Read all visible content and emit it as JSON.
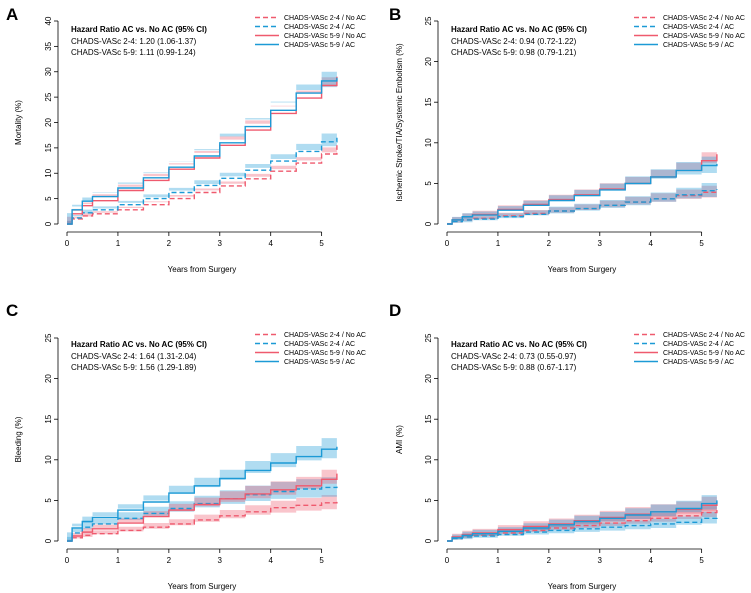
{
  "chart_data": [
    {
      "type": "line",
      "panel": "A",
      "xlabel": "Years from Surgery",
      "ylabel": "Mortality (%)",
      "xlim": [
        0,
        5.4
      ],
      "ylim": [
        0,
        40
      ],
      "xticks": [
        "0",
        "1",
        "2",
        "3",
        "4",
        "5"
      ],
      "yticks": [
        "0",
        "5",
        "10",
        "15",
        "20",
        "25",
        "30",
        "35",
        "40"
      ],
      "hr_title": "Hazard Ratio AC vs. No AC (95% CI)",
      "hr_lines": [
        "CHADS-VASc 2-4: 1.20 (1.06-1.37)",
        "CHADS-VASc 5-9: 1.11 (0.99-1.24)"
      ],
      "legend": [
        "CHADS-VASc 2-4 / No AC",
        "CHADS-VASc 2-4 / AC",
        "CHADS-VASc 5-9 / No AC",
        "CHADS-VASc 5-9 / AC"
      ],
      "series": [
        {
          "name": "CHADS-VASc 2-4 / No AC",
          "color": "#ef5a6e",
          "dashed": true,
          "band": 1.0,
          "x": [
            0,
            0.1,
            0.3,
            0.5,
            1,
            1.5,
            2,
            2.5,
            3,
            3.5,
            4,
            4.5,
            5,
            5.3
          ],
          "y": [
            0,
            1.0,
            1.6,
            2.0,
            2.8,
            3.8,
            5.0,
            6.2,
            7.5,
            8.9,
            10.4,
            12.0,
            13.8,
            15.5
          ]
        },
        {
          "name": "CHADS-VASc 2-4 / AC",
          "color": "#1c9ad6",
          "dashed": true,
          "band": 1.2,
          "x": [
            0,
            0.1,
            0.3,
            0.5,
            1,
            1.5,
            2,
            2.5,
            3,
            3.5,
            4,
            4.5,
            5,
            5.3
          ],
          "y": [
            0,
            1.2,
            2.2,
            2.8,
            3.8,
            5.0,
            6.2,
            7.6,
            9.0,
            10.6,
            12.4,
            14.3,
            16.2,
            17.0
          ]
        },
        {
          "name": "CHADS-VASc 5-9 / No AC",
          "color": "#ef5a6e",
          "dashed": false,
          "band": 1.2,
          "x": [
            0,
            0.1,
            0.3,
            0.5,
            1,
            1.5,
            2,
            2.5,
            3,
            3.5,
            4,
            4.5,
            5,
            5.3
          ],
          "y": [
            0,
            2.0,
            3.6,
            4.6,
            6.6,
            8.6,
            10.8,
            13.0,
            15.5,
            18.5,
            21.8,
            24.8,
            27.3,
            29.0
          ]
        },
        {
          "name": "CHADS-VASc 5-9 / AC",
          "color": "#1c9ad6",
          "dashed": false,
          "band": 1.3,
          "x": [
            0,
            0.1,
            0.3,
            0.5,
            1,
            1.5,
            2,
            2.5,
            3,
            3.5,
            4,
            4.5,
            5,
            5.3
          ],
          "y": [
            0,
            2.8,
            4.5,
            5.4,
            7.1,
            9.1,
            11.2,
            13.4,
            16.0,
            19.2,
            22.4,
            25.8,
            28.2,
            28.8
          ]
        }
      ]
    },
    {
      "type": "line",
      "panel": "B",
      "xlabel": "Years from Surgery",
      "ylabel": "Ischemic Stroke/TIA/Systemic Embolism (%)",
      "xlim": [
        0,
        5.4
      ],
      "ylim": [
        0,
        25
      ],
      "xticks": [
        "0",
        "1",
        "2",
        "3",
        "4",
        "5"
      ],
      "yticks": [
        "0",
        "5",
        "10",
        "15",
        "20",
        "25"
      ],
      "hr_title": "Hazard Ratio AC vs. No AC (95% CI)",
      "hr_lines": [
        "CHADS-VASc 2-4: 0.94 (0.72-1.22)",
        "CHADS-VASc 5-9: 0.98 (0.79-1.21)"
      ],
      "legend": [
        "CHADS-VASc 2-4 / No AC",
        "CHADS-VASc 2-4 / AC",
        "CHADS-VASc 5-9 / No AC",
        "CHADS-VASc 5-9 / AC"
      ],
      "series": [
        {
          "name": "CHADS-VASc 2-4 / No AC",
          "color": "#ef5a6e",
          "dashed": true,
          "band": 0.6,
          "x": [
            0,
            0.1,
            0.3,
            0.5,
            1,
            1.5,
            2,
            2.5,
            3,
            3.5,
            4,
            4.5,
            5,
            5.3
          ],
          "y": [
            0,
            0.3,
            0.5,
            0.7,
            1.0,
            1.3,
            1.6,
            1.9,
            2.3,
            2.7,
            3.1,
            3.5,
            3.9,
            4.1
          ]
        },
        {
          "name": "CHADS-VASc 2-4 / AC",
          "color": "#1c9ad6",
          "dashed": true,
          "band": 0.7,
          "x": [
            0,
            0.1,
            0.3,
            0.5,
            1,
            1.5,
            2,
            2.5,
            3,
            3.5,
            4,
            4.5,
            5,
            5.3
          ],
          "y": [
            0,
            0.3,
            0.5,
            0.6,
            0.9,
            1.2,
            1.6,
            1.9,
            2.3,
            2.7,
            3.1,
            3.6,
            4.1,
            4.3
          ]
        },
        {
          "name": "CHADS-VASc 5-9 / No AC",
          "color": "#ef5a6e",
          "dashed": false,
          "band": 0.8,
          "x": [
            0,
            0.1,
            0.3,
            0.5,
            1,
            1.5,
            2,
            2.5,
            3,
            3.5,
            4,
            4.5,
            5,
            5.3
          ],
          "y": [
            0,
            0.5,
            0.9,
            1.2,
            1.8,
            2.4,
            3.0,
            3.6,
            4.3,
            5.0,
            5.8,
            6.6,
            7.8,
            8.6
          ]
        },
        {
          "name": "CHADS-VASc 5-9 / AC",
          "color": "#1c9ad6",
          "dashed": false,
          "band": 0.8,
          "x": [
            0,
            0.1,
            0.3,
            0.5,
            1,
            1.5,
            2,
            2.5,
            3,
            3.5,
            4,
            4.5,
            5,
            5.3
          ],
          "y": [
            0,
            0.5,
            0.9,
            1.1,
            1.7,
            2.3,
            2.9,
            3.5,
            4.2,
            5.0,
            5.8,
            6.6,
            7.2,
            7.4
          ]
        }
      ]
    },
    {
      "type": "line",
      "panel": "C",
      "xlabel": "Years from Surgery",
      "ylabel": "Bleeding (%)",
      "xlim": [
        0,
        5.4
      ],
      "ylim": [
        0,
        25
      ],
      "xticks": [
        "0",
        "1",
        "2",
        "3",
        "4",
        "5"
      ],
      "yticks": [
        "0",
        "5",
        "10",
        "15",
        "20",
        "25"
      ],
      "hr_title": "Hazard Ratio AC vs. No AC (95% CI)",
      "hr_lines": [
        "CHADS-VASc 2-4: 1.64 (1.31-2.04)",
        "CHADS-VASc 5-9: 1.56 (1.29-1.89)"
      ],
      "legend": [
        "CHADS-VASc 2-4 / No AC",
        "CHADS-VASc 2-4 / AC",
        "CHADS-VASc 5-9 / No AC",
        "CHADS-VASc 5-9 / AC"
      ],
      "series": [
        {
          "name": "CHADS-VASc 2-4 / No AC",
          "color": "#ef5a6e",
          "dashed": true,
          "band": 0.7,
          "x": [
            0,
            0.1,
            0.3,
            0.5,
            1,
            1.5,
            2,
            2.5,
            3,
            3.5,
            4,
            4.5,
            5,
            5.3
          ],
          "y": [
            0,
            0.4,
            0.7,
            0.9,
            1.3,
            1.7,
            2.1,
            2.6,
            3.1,
            3.6,
            4.1,
            4.4,
            4.7,
            4.9
          ]
        },
        {
          "name": "CHADS-VASc 2-4 / AC",
          "color": "#1c9ad6",
          "dashed": true,
          "band": 0.9,
          "x": [
            0,
            0.1,
            0.3,
            0.5,
            1,
            1.5,
            2,
            2.5,
            3,
            3.5,
            4,
            4.5,
            5,
            5.3
          ],
          "y": [
            0,
            1.0,
            1.7,
            2.1,
            2.8,
            3.4,
            4.0,
            4.6,
            5.2,
            5.7,
            6.1,
            6.4,
            6.6,
            6.7
          ]
        },
        {
          "name": "CHADS-VASc 5-9 / No AC",
          "color": "#ef5a6e",
          "dashed": false,
          "band": 0.9,
          "x": [
            0,
            0.1,
            0.3,
            0.5,
            1,
            1.5,
            2,
            2.5,
            3,
            3.5,
            4,
            4.5,
            5,
            5.3
          ],
          "y": [
            0,
            0.6,
            1.1,
            1.5,
            2.2,
            3.0,
            3.8,
            4.5,
            5.2,
            5.8,
            6.3,
            6.8,
            7.6,
            8.3
          ]
        },
        {
          "name": "CHADS-VASc 5-9 / AC",
          "color": "#1c9ad6",
          "dashed": false,
          "band": 1.0,
          "x": [
            0,
            0.1,
            0.3,
            0.5,
            1,
            1.5,
            2,
            2.5,
            3,
            3.5,
            4,
            4.5,
            5,
            5.3
          ],
          "y": [
            0,
            1.6,
            2.4,
            2.9,
            3.8,
            4.8,
            5.9,
            6.8,
            7.7,
            8.7,
            9.6,
            10.4,
            11.3,
            11.6
          ]
        }
      ]
    },
    {
      "type": "line",
      "panel": "D",
      "xlabel": "Years from Surgery",
      "ylabel": "AMI (%)",
      "xlim": [
        0,
        5.4
      ],
      "ylim": [
        0,
        25
      ],
      "xticks": [
        "0",
        "1",
        "2",
        "3",
        "4",
        "5"
      ],
      "yticks": [
        "0",
        "5",
        "10",
        "15",
        "20",
        "25"
      ],
      "hr_title": "Hazard Ratio AC vs. No AC (95% CI)",
      "hr_lines": [
        "CHADS-VASc 2-4: 0.73 (0.55-0.97)",
        "CHADS-VASc 5-9: 0.88 (0.67-1.17)"
      ],
      "legend": [
        "CHADS-VASc 2-4 / No AC",
        "CHADS-VASc 2-4 / AC",
        "CHADS-VASc 5-9 / No AC",
        "CHADS-VASc 5-9 / AC"
      ],
      "series": [
        {
          "name": "CHADS-VASc 2-4 / No AC",
          "color": "#ef5a6e",
          "dashed": true,
          "band": 0.6,
          "x": [
            0,
            0.1,
            0.3,
            0.5,
            1,
            1.5,
            2,
            2.5,
            3,
            3.5,
            4,
            4.5,
            5,
            5.3
          ],
          "y": [
            0,
            0.3,
            0.5,
            0.7,
            1.0,
            1.3,
            1.6,
            1.9,
            2.2,
            2.5,
            2.8,
            3.1,
            3.5,
            3.8
          ]
        },
        {
          "name": "CHADS-VASc 2-4 / AC",
          "color": "#1c9ad6",
          "dashed": true,
          "band": 0.6,
          "x": [
            0,
            0.1,
            0.3,
            0.5,
            1,
            1.5,
            2,
            2.5,
            3,
            3.5,
            4,
            4.5,
            5,
            5.3
          ],
          "y": [
            0,
            0.3,
            0.5,
            0.6,
            0.8,
            1.1,
            1.3,
            1.5,
            1.7,
            1.9,
            2.1,
            2.3,
            2.8,
            3.0
          ]
        },
        {
          "name": "CHADS-VASc 5-9 / No AC",
          "color": "#ef5a6e",
          "dashed": false,
          "band": 0.8,
          "x": [
            0,
            0.1,
            0.3,
            0.5,
            1,
            1.5,
            2,
            2.5,
            3,
            3.5,
            4,
            4.5,
            5,
            5.3
          ],
          "y": [
            0,
            0.5,
            0.8,
            1.0,
            1.4,
            1.8,
            2.1,
            2.5,
            2.9,
            3.3,
            3.6,
            3.9,
            4.4,
            4.8
          ]
        },
        {
          "name": "CHADS-VASc 5-9 / AC",
          "color": "#1c9ad6",
          "dashed": false,
          "band": 0.8,
          "x": [
            0,
            0.1,
            0.3,
            0.5,
            1,
            1.5,
            2,
            2.5,
            3,
            3.5,
            4,
            4.5,
            5,
            5.3
          ],
          "y": [
            0,
            0.4,
            0.7,
            0.9,
            1.2,
            1.6,
            2.0,
            2.4,
            2.8,
            3.2,
            3.6,
            4.0,
            4.6,
            5.0
          ]
        }
      ]
    }
  ]
}
